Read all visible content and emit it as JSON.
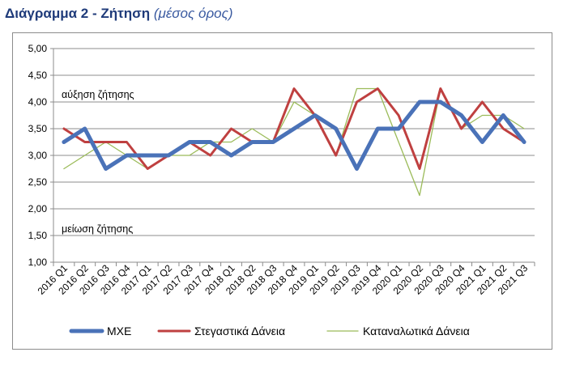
{
  "title": {
    "main": "Διάγραμμα 2 - Ζήτηση",
    "sub": "(μέσος όρος)"
  },
  "chart_data": {
    "type": "line",
    "categories": [
      "2016 Q1",
      "2016 Q2",
      "2016 Q3",
      "2016 Q4",
      "2017 Q1",
      "2017 Q2",
      "2017 Q3",
      "2017 Q4",
      "2018 Q1",
      "2018 Q2",
      "2018 Q3",
      "2018 Q4",
      "2019 Q1",
      "2019 Q2",
      "2019 Q3",
      "2019 Q4",
      "2020 Q1",
      "2020 Q2",
      "2020 Q3",
      "2020 Q4",
      "2021 Q1",
      "2021 Q2",
      "2021 Q3"
    ],
    "ylim": [
      1.0,
      5.0
    ],
    "yticks": [
      "1,00",
      "1,50",
      "2,00",
      "2,50",
      "3,00",
      "3,50",
      "4,00",
      "4,50",
      "5,00"
    ],
    "grid": true,
    "legend": "bottom",
    "annotations": {
      "up": "αύξηση ζήτησης",
      "down": "μείωση ζήτησης"
    },
    "series": [
      {
        "name": "ΜΧΕ",
        "color": "#4a72b8",
        "values": [
          3.25,
          3.5,
          2.75,
          3.0,
          3.0,
          3.0,
          3.25,
          3.25,
          3.0,
          3.25,
          3.25,
          3.5,
          3.75,
          3.5,
          2.75,
          3.5,
          3.5,
          4.0,
          4.0,
          3.75,
          3.25,
          3.75,
          3.25
        ]
      },
      {
        "name": "Στεγαστικά Δάνεια",
        "color": "#bf4040",
        "values": [
          3.5,
          3.25,
          3.25,
          3.25,
          2.75,
          3.0,
          3.25,
          3.0,
          3.5,
          3.25,
          3.25,
          4.25,
          3.75,
          3.0,
          4.0,
          4.25,
          3.75,
          2.75,
          4.25,
          3.5,
          4.0,
          3.5,
          3.25
        ]
      },
      {
        "name": "Καταναλωτικά Δάνεια",
        "color": "#9bbb59",
        "values": [
          2.75,
          3.0,
          3.25,
          3.0,
          2.75,
          3.0,
          3.0,
          3.25,
          3.25,
          3.5,
          3.25,
          4.0,
          3.75,
          3.0,
          4.25,
          4.25,
          3.25,
          2.25,
          4.25,
          3.5,
          3.75,
          3.75,
          3.5
        ]
      }
    ]
  }
}
